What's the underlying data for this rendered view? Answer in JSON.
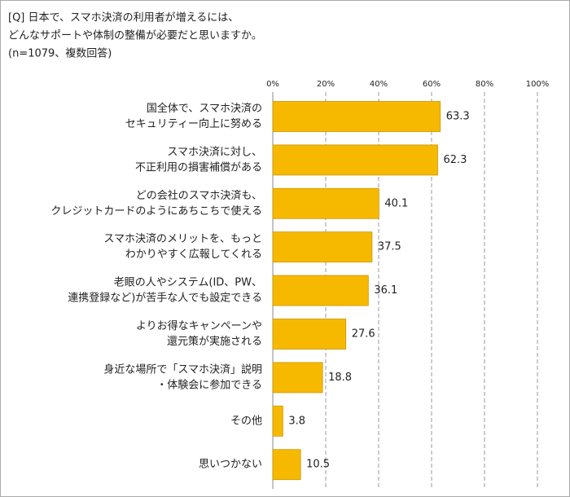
{
  "chart_data": {
    "type": "bar",
    "orientation": "horizontal",
    "title": [
      "[Q]  日本で、スマホ決済の利用者が増えるには、",
      "どんなサポートや体制の整備が必要だと思いますか。"
    ],
    "subtitle": "(n=1079、複数回答)",
    "categories": [
      [
        "国全体で、スマホ決済の",
        "セキュリティー向上に努める"
      ],
      [
        "スマホ決済に対し、",
        "不正利用の損害補償がある"
      ],
      [
        "どの会社のスマホ決済も、",
        "クレジットカードのようにあちこちで使える"
      ],
      [
        "スマホ決済のメリットを、もっと",
        "わかりやすく広報してくれる"
      ],
      [
        "老眼の人やシステム(ID、PW、",
        "連携登録など)が苦手な人でも設定できる"
      ],
      [
        "よりお得なキャンペーンや",
        "還元策が実施される"
      ],
      [
        "身近な場所で「スマホ決済」説明",
        "・体験会に参加できる"
      ],
      [
        "その他"
      ],
      [
        "思いつかない"
      ]
    ],
    "values": [
      63.3,
      62.3,
      40.1,
      37.5,
      36.1,
      27.6,
      18.8,
      3.8,
      10.5
    ],
    "color": "#f7b900",
    "xlim": [
      0,
      100
    ],
    "xticks": [
      {
        "value": 0,
        "label": "0%"
      },
      {
        "value": 20,
        "label": "20%"
      },
      {
        "value": 40,
        "label": "40%"
      },
      {
        "value": 60,
        "label": "60%"
      },
      {
        "value": 80,
        "label": "80%"
      },
      {
        "value": 100,
        "label": "100%"
      }
    ],
    "grid": true
  }
}
